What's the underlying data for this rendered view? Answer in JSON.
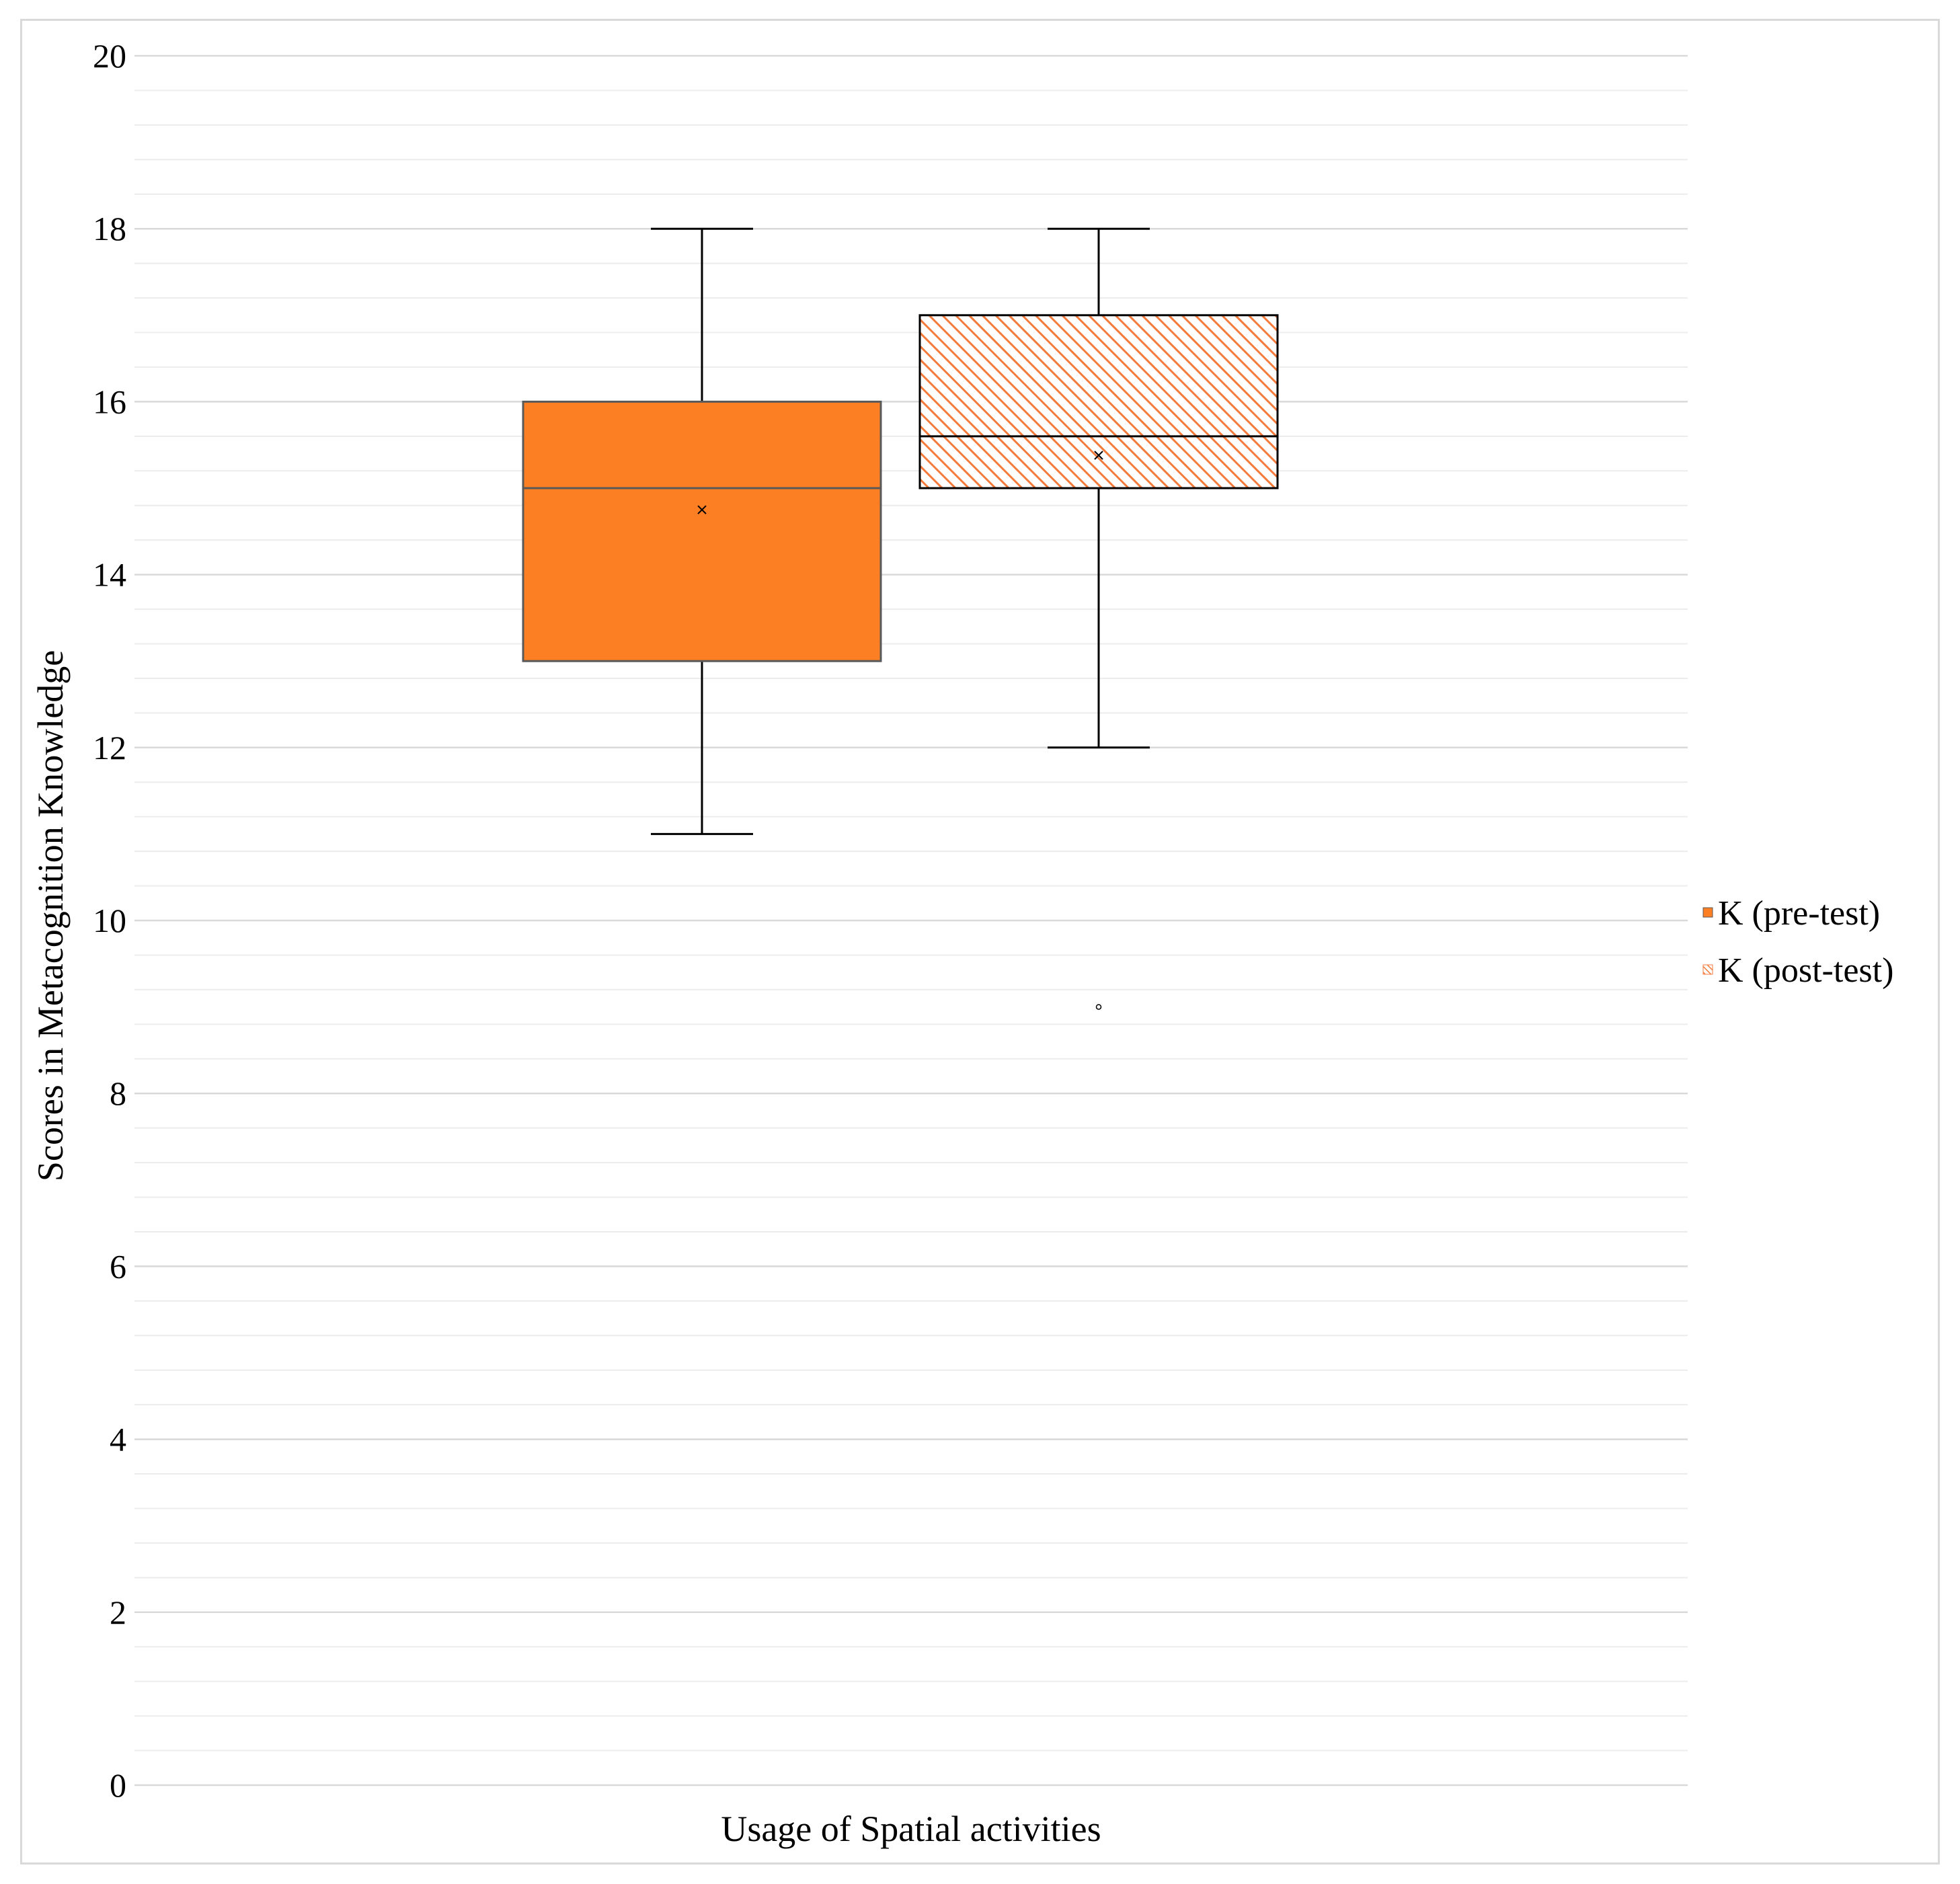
{
  "chart_data": {
    "type": "boxplot",
    "title": "",
    "xlabel": "Usage of Spatial activities",
    "ylabel": "Scores in Metacognition Knowledge",
    "ylim": [
      0,
      20
    ],
    "y_ticks": [
      0,
      2,
      4,
      6,
      8,
      10,
      12,
      14,
      16,
      18,
      20
    ],
    "y_tick_labels": [
      "0",
      "2",
      "4",
      "6",
      "8",
      "10",
      "12",
      "14",
      "16",
      "18",
      "20"
    ],
    "minor_gridlines": true,
    "minor_step": 0.4,
    "legend_position": "right",
    "series": [
      {
        "name": "K (pre-test)",
        "fill": "solid",
        "color": "#FD7F23",
        "stroke": "#595959",
        "whisker_low": 11,
        "q1": 13,
        "median": 15,
        "q3": 16,
        "whisker_high": 18,
        "mean": 14.75,
        "outliers": []
      },
      {
        "name": "K (post-test)",
        "fill": "hatched",
        "color": "#F47B3B",
        "stroke": "#000000",
        "whisker_low": 12,
        "q1": 15,
        "median": 15.6,
        "q3": 17,
        "whisker_high": 18,
        "mean": 15.38,
        "outliers": [
          9
        ]
      }
    ]
  }
}
